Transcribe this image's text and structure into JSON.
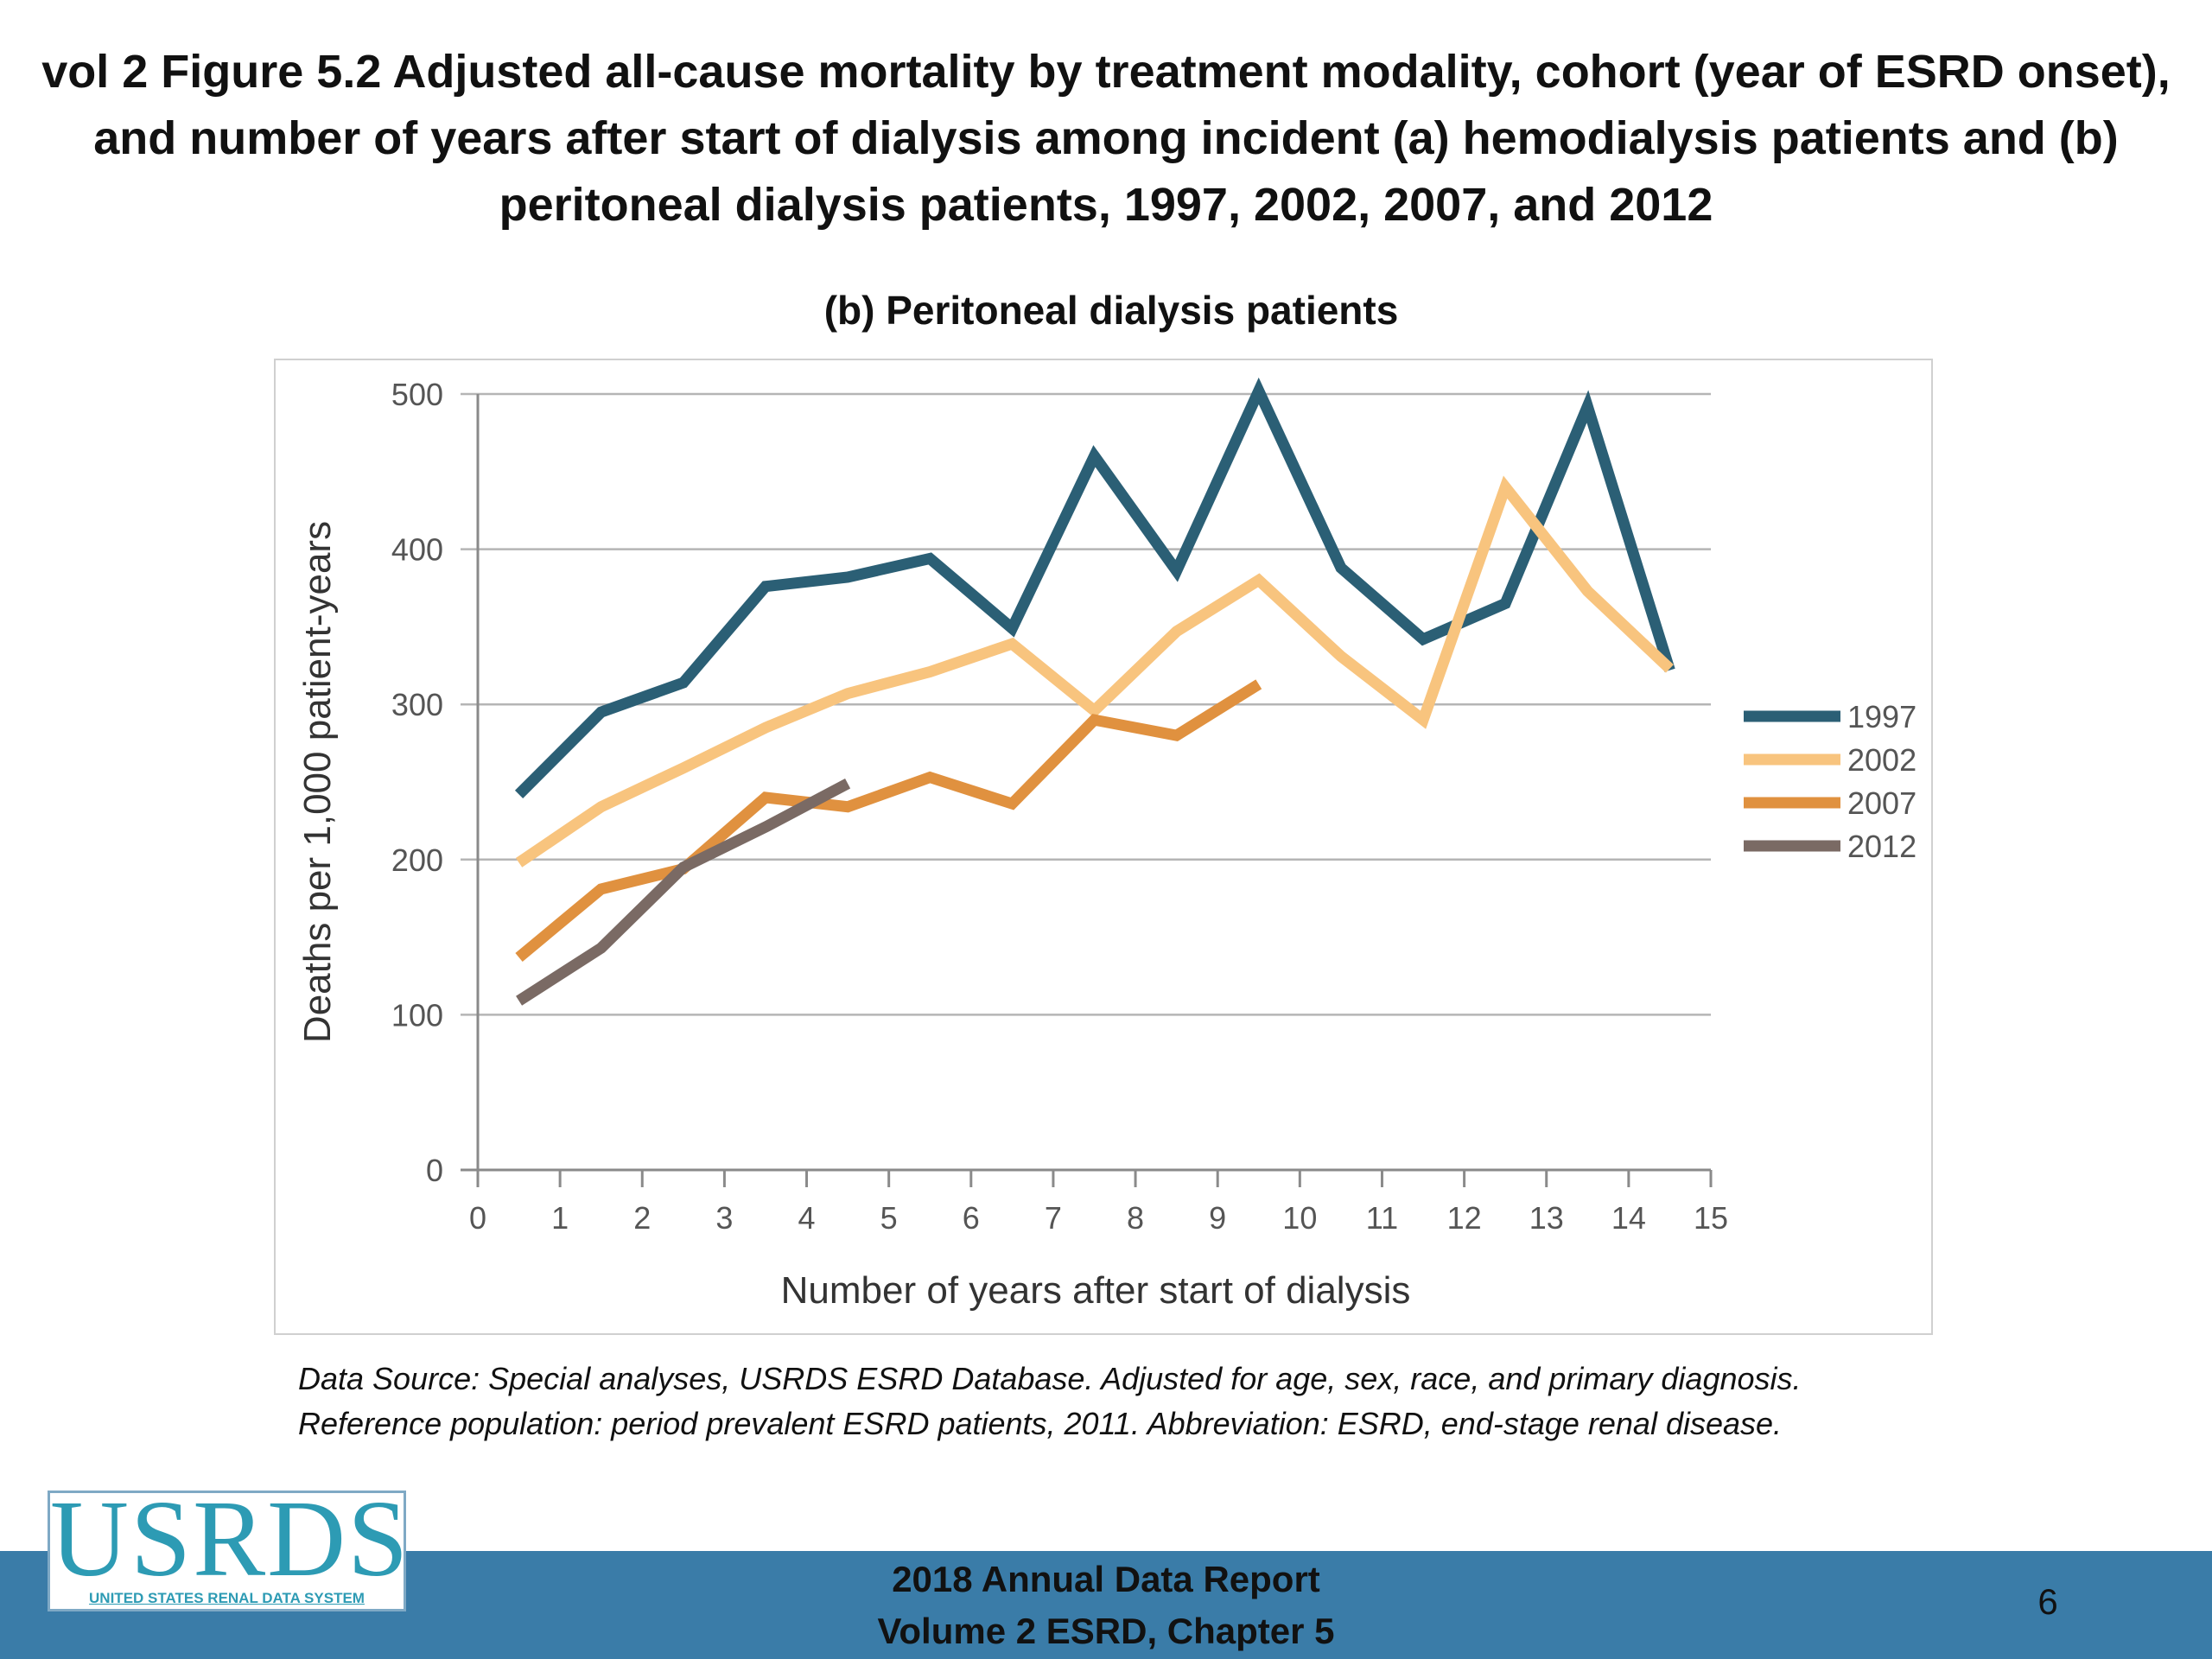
{
  "slide": {
    "title": "vol 2 Figure 5.2 Adjusted all-cause mortality by treatment modality, cohort (year of ESRD onset), and number of years after start of dialysis among incident (a) hemodialysis patients and (b) peritoneal dialysis patients, 1997, 2002, 2007, and 2012",
    "source_note_line1": "Data Source: Special analyses, USRDS ESRD Database. Adjusted for age, sex, race, and primary diagnosis.",
    "source_note_line2": "Reference population: period prevalent ESRD patients, 2011. Abbreviation: ESRD, end-stage renal disease.",
    "footer_line1": "2018 Annual Data Report",
    "footer_line2": "Volume 2 ESRD, Chapter 5",
    "page_number": "6"
  },
  "logo": {
    "text": "USRDS",
    "subtitle": "UNITED STATES RENAL DATA SYSTEM"
  },
  "chart_data": {
    "type": "line",
    "title": "(b) Peritoneal dialysis patients",
    "xlabel": "Number of years after start of dialysis",
    "ylabel": "Deaths per 1,000 patient-years",
    "xlim": [
      0,
      15
    ],
    "ylim": [
      0,
      500
    ],
    "x_ticks": [
      "0",
      "1",
      "2",
      "3",
      "4",
      "5",
      "6",
      "7",
      "8",
      "9",
      "10",
      "11",
      "12",
      "13",
      "14",
      "15"
    ],
    "y_ticks": [
      "0",
      "100",
      "200",
      "300",
      "400",
      "500"
    ],
    "grid": "horizontal",
    "legend_position": "right",
    "series": [
      {
        "name": "1997",
        "color": "#2b5f75",
        "x": [
          0.5,
          1.5,
          2.5,
          3.5,
          4.5,
          5.5,
          6.5,
          7.5,
          8.5,
          9.5,
          10.5,
          11.5,
          12.5,
          13.5,
          14.5
        ],
        "values": [
          242,
          295,
          314,
          376,
          382,
          394,
          349,
          460,
          386,
          502,
          388,
          342,
          365,
          492,
          322
        ]
      },
      {
        "name": "2002",
        "color": "#f8c47e",
        "x": [
          0.5,
          1.5,
          2.5,
          3.5,
          4.5,
          5.5,
          6.5,
          7.5,
          8.5,
          9.5,
          10.5,
          11.5,
          12.5,
          13.5,
          14.5
        ],
        "values": [
          198,
          234,
          259,
          285,
          307,
          321,
          339,
          296,
          347,
          380,
          331,
          290,
          440,
          373,
          323
        ]
      },
      {
        "name": "2007",
        "color": "#e0913f",
        "x": [
          0.5,
          1.5,
          2.5,
          3.5,
          4.5,
          5.5,
          6.5,
          7.5,
          8.5,
          9.5
        ],
        "values": [
          137,
          181,
          194,
          240,
          234,
          253,
          236,
          290,
          280,
          313
        ]
      },
      {
        "name": "2012",
        "color": "#7a6a64",
        "x": [
          0.5,
          1.5,
          2.5,
          3.5,
          4.5
        ],
        "values": [
          109,
          143,
          195,
          221,
          249
        ]
      }
    ]
  }
}
